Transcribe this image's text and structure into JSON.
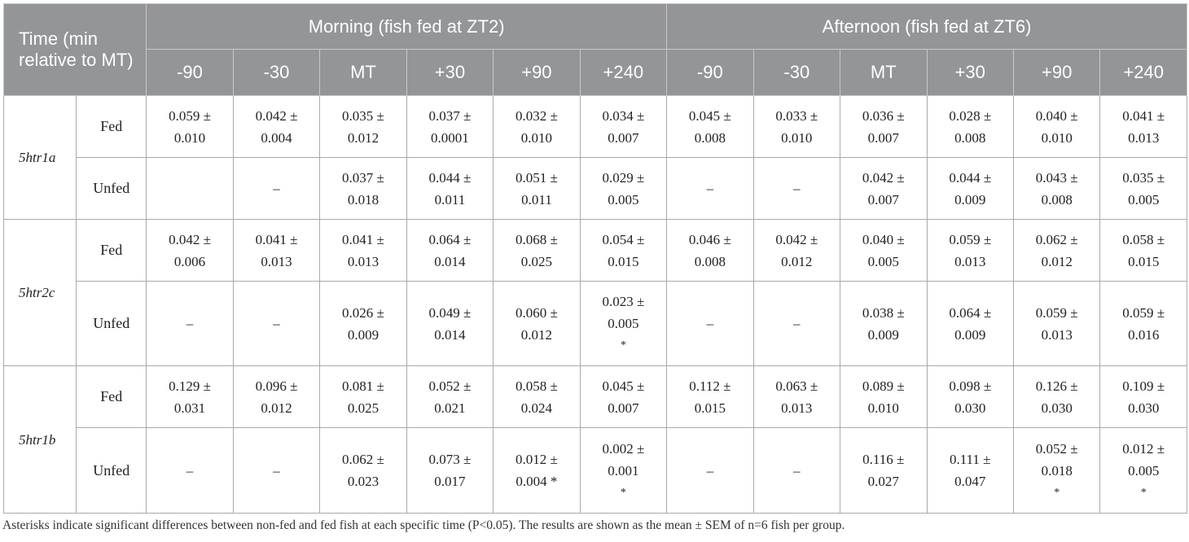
{
  "header": {
    "corner_label": "Time (min relative to MT)",
    "groups": [
      "Morning (fish fed at ZT2)",
      "Afternoon (fish fed at ZT6)"
    ],
    "times": [
      "-90",
      "-30",
      "MT",
      "+30",
      "+90",
      "+240",
      "-90",
      "-30",
      "MT",
      "+30",
      "+90",
      "+240"
    ]
  },
  "sections": [
    {
      "gene": "5htr1a",
      "rows": [
        {
          "label": "Fed",
          "cells": [
            [
              "0.059 ±",
              "0.010"
            ],
            [
              "0.042 ±",
              "0.004"
            ],
            [
              "0.035 ±",
              "0.012"
            ],
            [
              "0.037 ±",
              "0.0001"
            ],
            [
              "0.032 ±",
              "0.010"
            ],
            [
              "0.034 ±",
              "0.007"
            ],
            [
              "0.045 ±",
              "0.008"
            ],
            [
              "0.033 ±",
              "0.010"
            ],
            [
              "0.036 ±",
              "0.007"
            ],
            [
              "0.028 ±",
              "0.008"
            ],
            [
              "0.040 ±",
              "0.010"
            ],
            [
              "0.041 ±",
              "0.013"
            ]
          ]
        },
        {
          "label": "Unfed",
          "cells": [
            [
              ""
            ],
            [
              "–"
            ],
            [
              "0.037 ±",
              "0.018"
            ],
            [
              "0.044 ±",
              "0.011"
            ],
            [
              "0.051 ±",
              "0.011"
            ],
            [
              "0.029 ±",
              "0.005"
            ],
            [
              "–"
            ],
            [
              "–"
            ],
            [
              "0.042 ±",
              "0.007"
            ],
            [
              "0.044 ±",
              "0.009"
            ],
            [
              "0.043 ±",
              "0.008"
            ],
            [
              "0.035 ±",
              "0.005"
            ]
          ]
        }
      ]
    },
    {
      "gene": "5htr2c",
      "rows": [
        {
          "label": "Fed",
          "cells": [
            [
              "0.042 ±",
              "0.006"
            ],
            [
              "0.041 ±",
              "0.013"
            ],
            [
              "0.041 ±",
              "0.013"
            ],
            [
              "0.064 ±",
              "0.014"
            ],
            [
              "0.068 ±",
              "0.025"
            ],
            [
              "0.054 ±",
              "0.015"
            ],
            [
              "0.046 ±",
              "0.008"
            ],
            [
              "0.042 ±",
              "0.012"
            ],
            [
              "0.040 ±",
              "0.005"
            ],
            [
              "0.059 ±",
              "0.013"
            ],
            [
              "0.062 ±",
              "0.012"
            ],
            [
              "0.058 ±",
              "0.015"
            ]
          ]
        },
        {
          "label": "Unfed",
          "cells": [
            [
              "–"
            ],
            [
              "–"
            ],
            [
              "0.026 ±",
              "0.009"
            ],
            [
              "0.049 ±",
              "0.014"
            ],
            [
              "0.060 ±",
              "0.012"
            ],
            [
              "0.023 ±",
              "0.005",
              "*"
            ],
            [
              "–"
            ],
            [
              "–"
            ],
            [
              "0.038 ±",
              "0.009"
            ],
            [
              "0.064 ±",
              "0.009"
            ],
            [
              "0.059 ±",
              "0.013"
            ],
            [
              "0.059 ±",
              "0.016"
            ]
          ]
        }
      ]
    },
    {
      "gene": "5htr1b",
      "rows": [
        {
          "label": "Fed",
          "cells": [
            [
              "0.129 ±",
              "0.031"
            ],
            [
              "0.096 ±",
              "0.012"
            ],
            [
              "0.081 ±",
              "0.025"
            ],
            [
              "0.052 ±",
              "0.021"
            ],
            [
              "0.058 ±",
              "0.024"
            ],
            [
              "0.045 ±",
              "0.007"
            ],
            [
              "0.112 ±",
              "0.015"
            ],
            [
              "0.063 ±",
              "0.013"
            ],
            [
              "0.089 ±",
              "0.010"
            ],
            [
              "0.098 ±",
              "0.030"
            ],
            [
              "0.126 ±",
              "0.030"
            ],
            [
              "0.109 ±",
              "0.030"
            ]
          ]
        },
        {
          "label": "Unfed",
          "cells": [
            [
              "–"
            ],
            [
              "–"
            ],
            [
              "0.062 ±",
              "0.023"
            ],
            [
              "0.073 ±",
              "0.017"
            ],
            [
              "0.012 ±",
              "0.004 *"
            ],
            [
              "0.002 ±",
              "0.001",
              "*"
            ],
            [
              "–"
            ],
            [
              "–"
            ],
            [
              "0.116 ±",
              "0.027"
            ],
            [
              "0.111 ±",
              "0.047"
            ],
            [
              "0.052 ±",
              "0.018",
              "*"
            ],
            [
              "0.012 ±",
              "0.005",
              "*"
            ]
          ]
        }
      ]
    }
  ],
  "footnote": "Asterisks indicate significant differences between non-fed and fed fish at each specific time (P<0.05). The results are shown as the mean ± SEM of n=6 fish per group."
}
